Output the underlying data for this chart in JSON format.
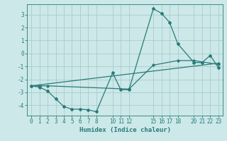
{
  "xlabel": "Humidex (Indice chaleur)",
  "bg_color": "#cce8e8",
  "grid_color": "#aacccc",
  "line_color": "#2a7a7a",
  "xlim": [
    -0.5,
    23.5
  ],
  "ylim": [
    -4.8,
    3.8
  ],
  "xticks": [
    0,
    1,
    2,
    3,
    4,
    5,
    6,
    7,
    8,
    10,
    11,
    12,
    15,
    16,
    17,
    18,
    20,
    21,
    22,
    23
  ],
  "yticks": [
    -4,
    -3,
    -2,
    -1,
    0,
    1,
    2,
    3
  ],
  "series1_x": [
    0,
    1,
    2,
    3,
    4,
    5,
    6,
    7,
    8,
    10,
    11,
    12,
    15,
    16,
    17,
    18,
    20,
    21,
    22,
    23
  ],
  "series1_y": [
    -2.5,
    -2.6,
    -2.9,
    -3.5,
    -4.1,
    -4.3,
    -4.3,
    -4.35,
    -4.5,
    -1.5,
    -2.8,
    -2.8,
    3.45,
    3.1,
    2.4,
    0.75,
    -0.7,
    -0.7,
    -0.15,
    -1.1
  ],
  "series2_x": [
    0,
    1,
    2,
    12,
    15,
    18,
    20,
    23
  ],
  "series2_y": [
    -2.5,
    -2.5,
    -2.5,
    -2.75,
    -0.9,
    -0.55,
    -0.55,
    -0.85
  ],
  "series3_x": [
    0,
    23
  ],
  "series3_y": [
    -2.5,
    -0.75
  ]
}
